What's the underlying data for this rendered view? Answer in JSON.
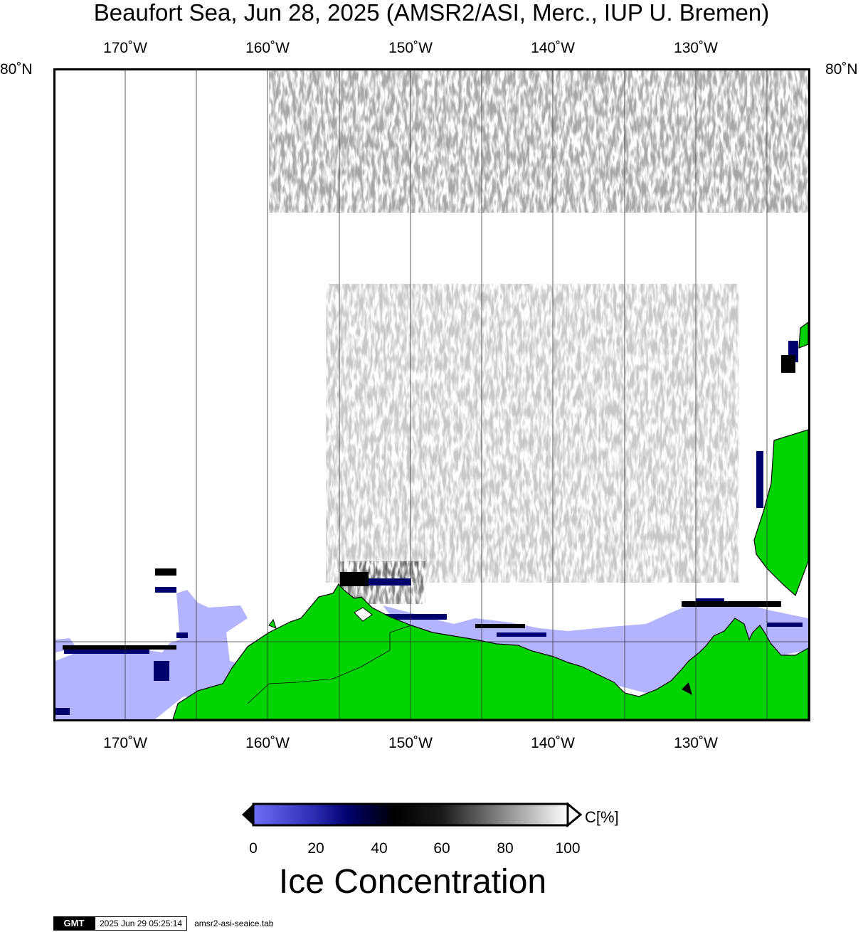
{
  "header": {
    "title": "Beaufort Sea, Jun 28, 2025 (AMSR2/ASI, Merc., IUP U. Bremen)"
  },
  "map": {
    "lon_labels": [
      "170˚W",
      "160˚W",
      "150˚W",
      "140˚W",
      "130˚W"
    ],
    "lat_labels": [
      "80˚N"
    ],
    "lon_range": [
      -175,
      -122
    ],
    "colors": {
      "land": "#00d400",
      "land_border": "#000000",
      "low_concentration": "#b3b3ff",
      "gridline": "#555555"
    }
  },
  "colorbar": {
    "unit": "C[%]",
    "ticks": [
      "0",
      "20",
      "40",
      "60",
      "80",
      "100"
    ],
    "label": "Ice Concentration",
    "stops": [
      "#6f6ff5",
      "#00006e",
      "#000000",
      "#ffffff"
    ]
  },
  "footer": {
    "logo_text": "GMT",
    "timestamp": "2025 Jun 29 05:25:14",
    "filename": "amsr2-asi-seaice.tab"
  }
}
